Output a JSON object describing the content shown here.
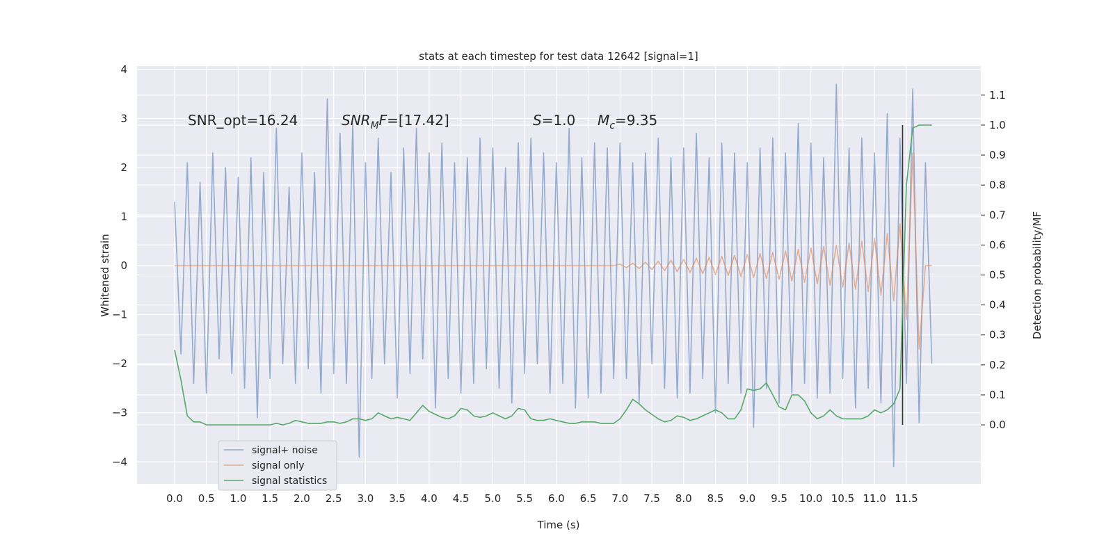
{
  "chart_data": {
    "type": "line",
    "title": "stats at each timestep for test data 12642 [signal=1]",
    "xlabel": "Time (s)",
    "ylabel": "Whitened strain",
    "y2label": "Detection probability/MF",
    "xlim": [
      -0.59,
      12.67
    ],
    "ylim": [
      -4.45,
      4.07
    ],
    "y2lim": [
      -0.197,
      1.197
    ],
    "xticks": [
      {
        "value": 0,
        "label": "0.0"
      },
      0.5,
      {
        "value": 1,
        "label": "1.0"
      },
      1.5,
      {
        "value": 2,
        "label": "2.0"
      },
      2.5,
      {
        "value": 3,
        "label": "3.0"
      },
      3.5,
      {
        "value": 4,
        "label": "4.0"
      },
      4.5,
      {
        "value": 5,
        "label": "5.0"
      },
      5.5,
      {
        "value": 6,
        "label": "6.0"
      },
      6.5,
      {
        "value": 7,
        "label": "7.0"
      },
      7.5,
      {
        "value": 8,
        "label": "8.0"
      },
      8.5,
      {
        "value": 9,
        "label": "9.0"
      },
      9.5,
      {
        "value": 10,
        "label": "10.0"
      },
      10.5,
      {
        "value": 11,
        "label": "11.0"
      },
      11.5
    ],
    "yticks": [
      {
        "value": -4,
        "label": "−4"
      },
      {
        "value": -3,
        "label": "−3"
      },
      {
        "value": -2,
        "label": "−2"
      },
      {
        "value": -1,
        "label": "−1"
      },
      0,
      1,
      2,
      3,
      4
    ],
    "y2ticks": [
      {
        "value": 0,
        "label": "0.0"
      },
      0.1,
      0.2,
      0.3,
      0.4,
      0.5,
      0.6,
      0.7,
      0.8,
      0.9,
      {
        "value": 1,
        "label": "1.0"
      },
      1.1
    ],
    "grid": true,
    "legend": "lower left",
    "x": [
      0.0,
      0.1,
      0.2,
      0.3,
      0.4,
      0.5,
      0.6,
      0.7,
      0.8,
      0.9,
      1.0,
      1.1,
      1.2,
      1.3,
      1.4,
      1.5,
      1.6,
      1.7,
      1.8,
      1.9,
      2.0,
      2.1,
      2.2,
      2.3,
      2.4,
      2.5,
      2.6,
      2.7,
      2.8,
      2.9,
      3.0,
      3.1,
      3.2,
      3.3,
      3.4,
      3.5,
      3.6,
      3.7,
      3.8,
      3.9,
      4.0,
      4.1,
      4.2,
      4.3,
      4.4,
      4.5,
      4.6,
      4.7,
      4.8,
      4.9,
      5.0,
      5.1,
      5.2,
      5.3,
      5.4,
      5.5,
      5.6,
      5.7,
      5.8,
      5.9,
      6.0,
      6.1,
      6.2,
      6.3,
      6.4,
      6.5,
      6.6,
      6.7,
      6.8,
      6.9,
      7.0,
      7.1,
      7.2,
      7.3,
      7.4,
      7.5,
      7.6,
      7.7,
      7.8,
      7.9,
      8.0,
      8.1,
      8.2,
      8.3,
      8.4,
      8.5,
      8.6,
      8.7,
      8.8,
      8.9,
      9.0,
      9.1,
      9.2,
      9.3,
      9.4,
      9.5,
      9.6,
      9.7,
      9.8,
      9.9,
      10.0,
      10.1,
      10.2,
      10.3,
      10.4,
      10.5,
      10.6,
      10.7,
      10.8,
      10.9,
      11.0,
      11.1,
      11.2,
      11.3,
      11.4,
      11.5,
      11.6,
      11.7,
      11.8,
      11.9
    ],
    "series": [
      {
        "name": "signal+ noise",
        "color": "#4c72b0",
        "alpha": 0.55,
        "values": [
          1.3,
          -1.8,
          2.1,
          -2.4,
          1.7,
          -2.6,
          2.3,
          -1.9,
          2.0,
          -2.2,
          1.8,
          -2.5,
          2.2,
          -3.1,
          1.9,
          -2.3,
          2.8,
          -2.0,
          1.6,
          -2.4,
          2.3,
          -2.1,
          1.9,
          -2.6,
          3.4,
          -2.2,
          2.7,
          -2.4,
          2.9,
          -3.9,
          2.1,
          -2.3,
          2.6,
          -2.0,
          1.9,
          -2.7,
          2.4,
          -2.2,
          2.8,
          -1.9,
          2.3,
          -2.9,
          2.5,
          -2.3,
          2.1,
          -2.6,
          2.2,
          -2.4,
          2.6,
          -2.1,
          2.4,
          -2.5,
          2.0,
          -2.8,
          2.5,
          -2.2,
          2.6,
          -2.0,
          2.3,
          -2.6,
          2.1,
          -2.4,
          2.8,
          -2.9,
          2.2,
          -2.7,
          2.5,
          -2.6,
          2.4,
          -2.3,
          2.5,
          -2.3,
          2.1,
          -2.8,
          2.3,
          -2.0,
          2.6,
          -2.5,
          2.2,
          -2.7,
          2.4,
          -2.6,
          2.7,
          -2.3,
          2.2,
          -3.0,
          2.5,
          -2.4,
          2.3,
          -2.6,
          2.1,
          -3.3,
          2.4,
          -2.5,
          2.6,
          -2.8,
          2.3,
          -2.6,
          2.9,
          -2.4,
          2.5,
          -2.7,
          2.2,
          -2.6,
          3.7,
          -2.3,
          2.4,
          -2.9,
          2.6,
          -2.5,
          2.3,
          -2.8,
          3.1,
          -4.1,
          2.6,
          -2.4,
          3.6,
          -3.2,
          2.1,
          -2.0
        ]
      },
      {
        "name": "signal only",
        "color": "#dd8452",
        "alpha": 0.6,
        "values": [
          0,
          0,
          0,
          0,
          0,
          0,
          0,
          0,
          0,
          0,
          0,
          0,
          0,
          0,
          0,
          0,
          0,
          0,
          0,
          0,
          0,
          0,
          0,
          0,
          0,
          0,
          0,
          0,
          0,
          0,
          0,
          0,
          0,
          0,
          0,
          0,
          0,
          0,
          0,
          0,
          0,
          0,
          0,
          0,
          0,
          0,
          0,
          0,
          0,
          0,
          0,
          0,
          0,
          0,
          0,
          0,
          0,
          0,
          0,
          0,
          0,
          0,
          0,
          0,
          0,
          0,
          0,
          0,
          0,
          0,
          0.03,
          -0.04,
          0.05,
          -0.06,
          0.07,
          -0.08,
          0.09,
          -0.1,
          0.11,
          -0.12,
          0.13,
          -0.14,
          0.15,
          -0.16,
          0.17,
          -0.18,
          0.19,
          -0.2,
          0.21,
          -0.22,
          0.23,
          -0.24,
          0.25,
          -0.26,
          0.27,
          -0.28,
          0.3,
          -0.31,
          0.33,
          -0.34,
          0.36,
          -0.37,
          0.39,
          -0.4,
          0.42,
          -0.44,
          0.46,
          -0.48,
          0.5,
          -0.53,
          0.56,
          -0.6,
          0.65,
          -0.72,
          0.85,
          -1.1,
          2.3,
          -1.7,
          0,
          0
        ]
      },
      {
        "name": "signal statistics",
        "color": "#55a868",
        "alpha": 1,
        "axis": "y2",
        "values": [
          0.25,
          0.15,
          0.03,
          0.01,
          0.01,
          0.0,
          0.0,
          0.0,
          0.0,
          0.0,
          0.0,
          0.0,
          0.0,
          0.0,
          0.0,
          0.0,
          0.005,
          0.0,
          0.005,
          0.015,
          0.01,
          0.005,
          0.005,
          0.005,
          0.01,
          0.01,
          0.005,
          0.01,
          0.02,
          0.02,
          0.015,
          0.02,
          0.04,
          0.03,
          0.02,
          0.025,
          0.02,
          0.015,
          0.04,
          0.065,
          0.045,
          0.035,
          0.025,
          0.02,
          0.03,
          0.055,
          0.05,
          0.03,
          0.025,
          0.03,
          0.04,
          0.03,
          0.02,
          0.03,
          0.055,
          0.05,
          0.02,
          0.015,
          0.015,
          0.02,
          0.015,
          0.01,
          0.005,
          0.005,
          0.01,
          0.01,
          0.01,
          0.005,
          0.005,
          0.005,
          0.02,
          0.05,
          0.085,
          0.07,
          0.05,
          0.035,
          0.02,
          0.01,
          0.015,
          0.03,
          0.025,
          0.015,
          0.02,
          0.03,
          0.04,
          0.05,
          0.04,
          0.02,
          0.02,
          0.05,
          0.12,
          0.115,
          0.12,
          0.14,
          0.1,
          0.06,
          0.05,
          0.1,
          0.1,
          0.08,
          0.04,
          0.02,
          0.03,
          0.05,
          0.03,
          0.02,
          0.02,
          0.02,
          0.02,
          0.03,
          0.05,
          0.04,
          0.05,
          0.07,
          0.12,
          0.8,
          0.99,
          1.0,
          1.0,
          1.0
        ]
      }
    ],
    "vline": {
      "x": 11.44,
      "y2": [
        0,
        1.0
      ],
      "color": "#333333"
    },
    "annotations": [
      [
        {
          "text": "SNR_opt=16.24"
        }
      ],
      [
        {
          "text": "SNR",
          "italic": true
        },
        {
          "text": "M",
          "italic": true,
          "sub": true
        },
        {
          "text": "F",
          "italic": true
        },
        {
          "text": "=[17.42]"
        }
      ],
      [
        {
          "text": "S",
          "italic": true
        },
        {
          "text": "=1.0"
        }
      ],
      [
        {
          "text": "M",
          "italic": true
        },
        {
          "text": "c",
          "italic": true,
          "sub": true
        },
        {
          "text": "=9.35"
        }
      ]
    ]
  }
}
